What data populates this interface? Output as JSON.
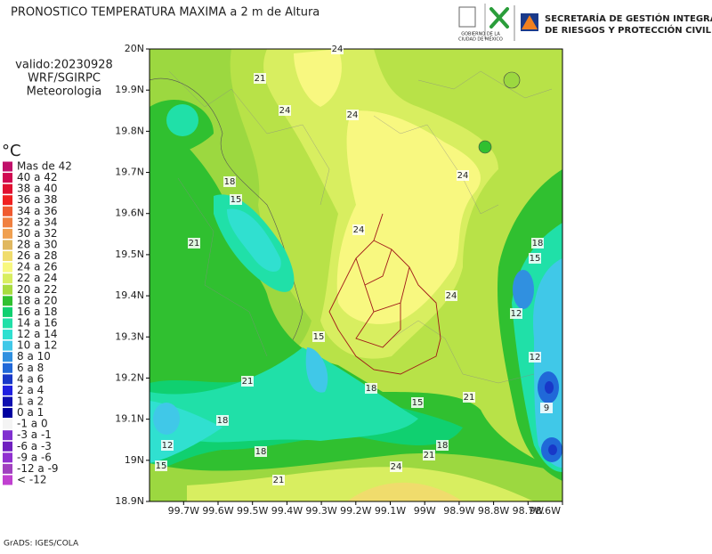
{
  "header": {
    "title": "PRONOSTICO TEMPERATURA MAXIMA a 2 m de Altura",
    "logo_left": [
      "GOBIERNO DE LA",
      "CIUDAD DE MÉXICO"
    ],
    "logo_right": [
      "SECRETARÍA DE GESTIÓN INTEGRAL",
      "DE RIESGOS Y PROTECCIÓN CIVIL"
    ]
  },
  "info": [
    "valido:20230928",
    "WRF/SGIRPC",
    "Meteorologia"
  ],
  "legend": {
    "unit": "°C",
    "items": [
      {
        "label": "Mas de 42",
        "color": "#c0106a"
      },
      {
        "label": "40 a 42",
        "color": "#d00850"
      },
      {
        "label": "38 a 40",
        "color": "#e01030"
      },
      {
        "label": "36 a 38",
        "color": "#f02020"
      },
      {
        "label": "34 a 36",
        "color": "#f05a30"
      },
      {
        "label": "32 a 34",
        "color": "#f08040"
      },
      {
        "label": "30 a 32",
        "color": "#f0a050"
      },
      {
        "label": "28 a 30",
        "color": "#e0b860"
      },
      {
        "label": "26 a 28",
        "color": "#f0dc6c"
      },
      {
        "label": "24 a 26",
        "color": "#f8f880"
      },
      {
        "label": "22 a 24",
        "color": "#d8ee60"
      },
      {
        "label": "20 a 22",
        "color": "#a8dc40"
      },
      {
        "label": "18 a 20",
        "color": "#30c030"
      },
      {
        "label": "16 a 18",
        "color": "#10d070"
      },
      {
        "label": "14 a 16",
        "color": "#20e0a8"
      },
      {
        "label": "12 a 14",
        "color": "#30e0d0"
      },
      {
        "label": "10 a 12",
        "color": "#40c8e8"
      },
      {
        "label": "8 a 10",
        "color": "#3090e0"
      },
      {
        "label": "6 a 8",
        "color": "#2068d8"
      },
      {
        "label": "4 a 6",
        "color": "#1838c8"
      },
      {
        "label": "2 a 4",
        "color": "#2020e0"
      },
      {
        "label": "1 a 2",
        "color": "#1010b0"
      },
      {
        "label": "0 a 1",
        "color": "#0000a0"
      },
      {
        "label": "-1 a 0",
        "color": "#f4f4f4"
      },
      {
        "label": "-3 a -1",
        "color": "#8030d0"
      },
      {
        "label": "-6 a -3",
        "color": "#7020c0"
      },
      {
        "label": "-9 a -6",
        "color": "#9030d0"
      },
      {
        "label": "-12 a -9",
        "color": "#a040c0"
      },
      {
        "label": "< -12",
        "color": "#c040d0"
      }
    ]
  },
  "map": {
    "lat_labels": [
      "20N",
      "19.9N",
      "19.8N",
      "19.7N",
      "19.6N",
      "19.5N",
      "19.4N",
      "19.3N",
      "19.2N",
      "19.1N",
      "19N",
      "18.9N"
    ],
    "lon_labels": [
      "99.7W",
      "99.6W",
      "99.5W",
      "99.4W",
      "99.3W",
      "99.2W",
      "99.1W",
      "99W",
      "98.9W",
      "98.8W",
      "98.7W",
      "98.6W"
    ],
    "contour_labels": [
      24,
      21,
      24,
      24,
      18,
      15,
      24,
      24,
      21,
      18,
      15,
      24,
      12,
      15,
      12,
      21,
      18,
      21,
      9,
      15,
      18,
      12,
      18,
      18,
      21,
      15,
      24,
      21
    ]
  },
  "footer": "GrADS: IGES/COLA"
}
